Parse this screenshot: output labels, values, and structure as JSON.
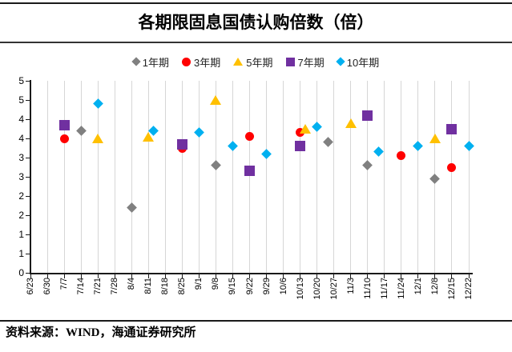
{
  "title": "各期限固息国债认购倍数（倍）",
  "source": "资料来源：WIND，海通证券研究所",
  "chart_data": {
    "type": "scatter",
    "title": "各期限固息国债认购倍数（倍）",
    "categories": [
      "6/23",
      "6/30",
      "7/7",
      "7/14",
      "7/21",
      "7/28",
      "8/4",
      "8/11",
      "8/18",
      "8/25",
      "9/1",
      "9/8",
      "9/15",
      "9/22",
      "9/29",
      "10/6",
      "10/13",
      "10/20",
      "10/27",
      "11/3",
      "11/10",
      "11/17",
      "11/24",
      "12/1",
      "12/8",
      "12/15",
      "12/22"
    ],
    "ylim": [
      0,
      5
    ],
    "ytick_step": 0.5,
    "ytick_labels_bottom_to_top": [
      "0",
      "1",
      "1",
      "2",
      "2",
      "3",
      "3",
      "4",
      "4",
      "5",
      "5"
    ],
    "grid": "vertical-only",
    "grid_color": "#d6d6d6",
    "axis_color": "#1a1a1a",
    "legend_position": "top-center",
    "series": [
      {
        "name": "1年期",
        "marker": "diamond",
        "color": "#808080",
        "points": [
          {
            "date": "7/14",
            "value": 3.7
          },
          {
            "date": "8/4",
            "value": 1.7
          },
          {
            "date": "9/8",
            "value": 2.8
          },
          {
            "date": "10/27",
            "value": 3.4,
            "dx": -7
          },
          {
            "date": "11/10",
            "value": 2.8
          },
          {
            "date": "12/8",
            "value": 2.45
          }
        ]
      },
      {
        "name": "3年期",
        "marker": "circle",
        "color": "#ff0000",
        "points": [
          {
            "date": "7/7",
            "value": 3.5
          },
          {
            "date": "8/25",
            "value": 3.25
          },
          {
            "date": "9/22",
            "value": 3.55
          },
          {
            "date": "10/13",
            "value": 3.65
          },
          {
            "date": "11/24",
            "value": 3.05
          },
          {
            "date": "12/15",
            "value": 2.75
          }
        ]
      },
      {
        "name": "5年期",
        "marker": "triangle",
        "color": "#ffc000",
        "points": [
          {
            "date": "7/21",
            "value": 3.5
          },
          {
            "date": "8/11",
            "value": 3.55
          },
          {
            "date": "9/8",
            "value": 4.5
          },
          {
            "date": "10/13",
            "value": 3.75,
            "dx": 6
          },
          {
            "date": "11/3",
            "value": 3.9
          },
          {
            "date": "12/8",
            "value": 3.5
          }
        ]
      },
      {
        "name": "7年期",
        "marker": "square",
        "color": "#7030a0",
        "points": [
          {
            "date": "7/7",
            "value": 3.85
          },
          {
            "date": "8/25",
            "value": 3.35
          },
          {
            "date": "9/22",
            "value": 2.65
          },
          {
            "date": "10/13",
            "value": 3.3
          },
          {
            "date": "11/10",
            "value": 4.1
          },
          {
            "date": "12/15",
            "value": 3.75
          }
        ]
      },
      {
        "name": "10年期",
        "marker": "diamond",
        "color": "#00b0f0",
        "points": [
          {
            "date": "7/21",
            "value": 4.4
          },
          {
            "date": "8/11",
            "value": 3.7,
            "dx": 6
          },
          {
            "date": "9/1",
            "value": 3.65
          },
          {
            "date": "9/15",
            "value": 3.3
          },
          {
            "date": "9/29",
            "value": 3.1
          },
          {
            "date": "10/20",
            "value": 3.8
          },
          {
            "date": "11/17",
            "value": 3.15,
            "dx": -7
          },
          {
            "date": "12/1",
            "value": 3.3
          },
          {
            "date": "12/22",
            "value": 3.3
          }
        ]
      }
    ]
  }
}
